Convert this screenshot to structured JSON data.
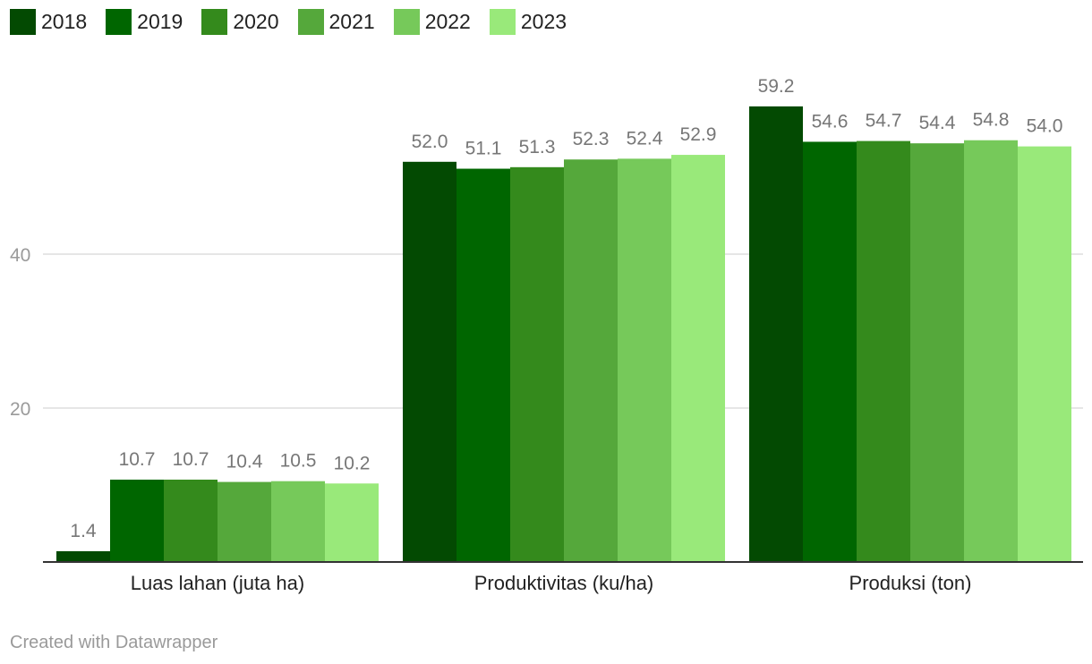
{
  "chart_data": {
    "type": "bar",
    "categories": [
      "Luas lahan (juta ha)",
      "Produktivitas (ku/ha)",
      "Produksi (ton)"
    ],
    "series": [
      {
        "name": "2018",
        "color": "#034a02",
        "values": [
          1.4,
          52.0,
          59.2
        ]
      },
      {
        "name": "2019",
        "color": "#006600",
        "values": [
          10.7,
          51.1,
          54.6
        ]
      },
      {
        "name": "2020",
        "color": "#348a1c",
        "values": [
          10.7,
          51.3,
          54.7
        ]
      },
      {
        "name": "2021",
        "color": "#55a83b",
        "values": [
          10.4,
          52.3,
          54.4
        ]
      },
      {
        "name": "2022",
        "color": "#76c95a",
        "values": [
          10.5,
          52.4,
          54.8
        ]
      },
      {
        "name": "2023",
        "color": "#99e97a",
        "values": [
          10.2,
          52.9,
          54.0
        ]
      }
    ],
    "value_labels": [
      [
        "1.4",
        "52.0",
        "59.2"
      ],
      [
        "10.7",
        "51.1",
        "54.6"
      ],
      [
        "10.7",
        "51.3",
        "54.7"
      ],
      [
        "10.4",
        "52.3",
        "54.4"
      ],
      [
        "10.5",
        "52.4",
        "54.8"
      ],
      [
        "10.2",
        "52.9",
        "54.0"
      ]
    ],
    "yticks": [
      20,
      40
    ],
    "ytick_labels": [
      "20",
      "40"
    ],
    "ylim": [
      0,
      60
    ],
    "grid": true,
    "legend": "top-left",
    "title": "",
    "xlabel": "",
    "ylabel": ""
  },
  "footer": {
    "credit": "Created with Datawrapper"
  }
}
